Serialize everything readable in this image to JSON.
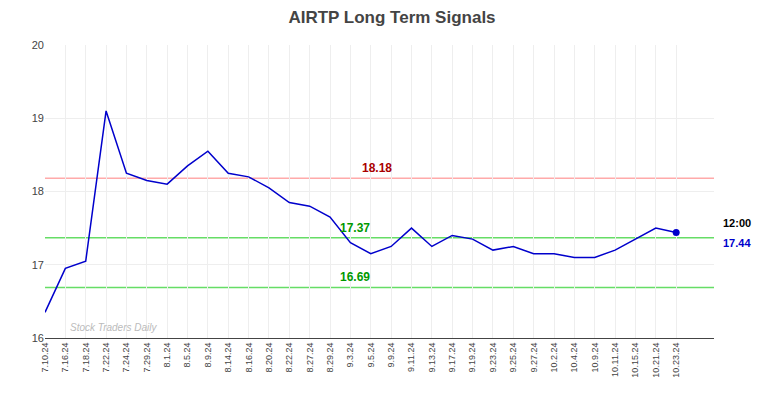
{
  "chart_data": {
    "type": "line",
    "title": "AIRTP Long Term Signals",
    "categories": [
      "7.10.24",
      "7.16.24",
      "7.18.24",
      "7.22.24",
      "7.24.24",
      "7.29.24",
      "8.1.24",
      "8.5.24",
      "8.9.24",
      "8.14.24",
      "8.16.24",
      "8.20.24",
      "8.22.24",
      "8.27.24",
      "8.29.24",
      "9.3.24",
      "9.5.24",
      "9.9.24",
      "9.11.24",
      "9.13.24",
      "9.17.24",
      "9.19.24",
      "9.23.24",
      "9.25.24",
      "9.27.24",
      "10.2.24",
      "10.4.24",
      "10.9.24",
      "10.11.24",
      "10.15.24",
      "10.21.24",
      "10.23.24"
    ],
    "values": [
      16.35,
      16.95,
      17.05,
      19.1,
      18.25,
      18.15,
      18.1,
      18.35,
      18.55,
      18.25,
      18.2,
      18.05,
      17.85,
      17.8,
      17.65,
      17.3,
      17.15,
      17.25,
      17.5,
      17.25,
      17.4,
      17.35,
      17.2,
      17.25,
      17.15,
      17.15,
      17.1,
      17.1,
      17.2,
      17.35,
      17.5,
      17.44
    ],
    "color": "#0000cc",
    "hlines": [
      {
        "value": 18.18,
        "color": "#ffaaaa",
        "label": "18.18",
        "label_color": "#aa0000"
      },
      {
        "value": 17.37,
        "color": "#66dd66",
        "label": "17.37",
        "label_color": "#009900"
      },
      {
        "value": 16.69,
        "color": "#66dd66",
        "label": "16.69",
        "label_color": "#009900"
      }
    ],
    "annotations": [
      {
        "text": "12:00",
        "color": "#000000"
      },
      {
        "text": "17.44",
        "color": "#0000cc"
      }
    ],
    "watermark": {
      "text": "Stock Traders Daily",
      "color": "#bbbbbb"
    },
    "ylim": [
      16,
      20
    ],
    "yticks": [
      16,
      17,
      18,
      19,
      20
    ],
    "grid": true
  }
}
